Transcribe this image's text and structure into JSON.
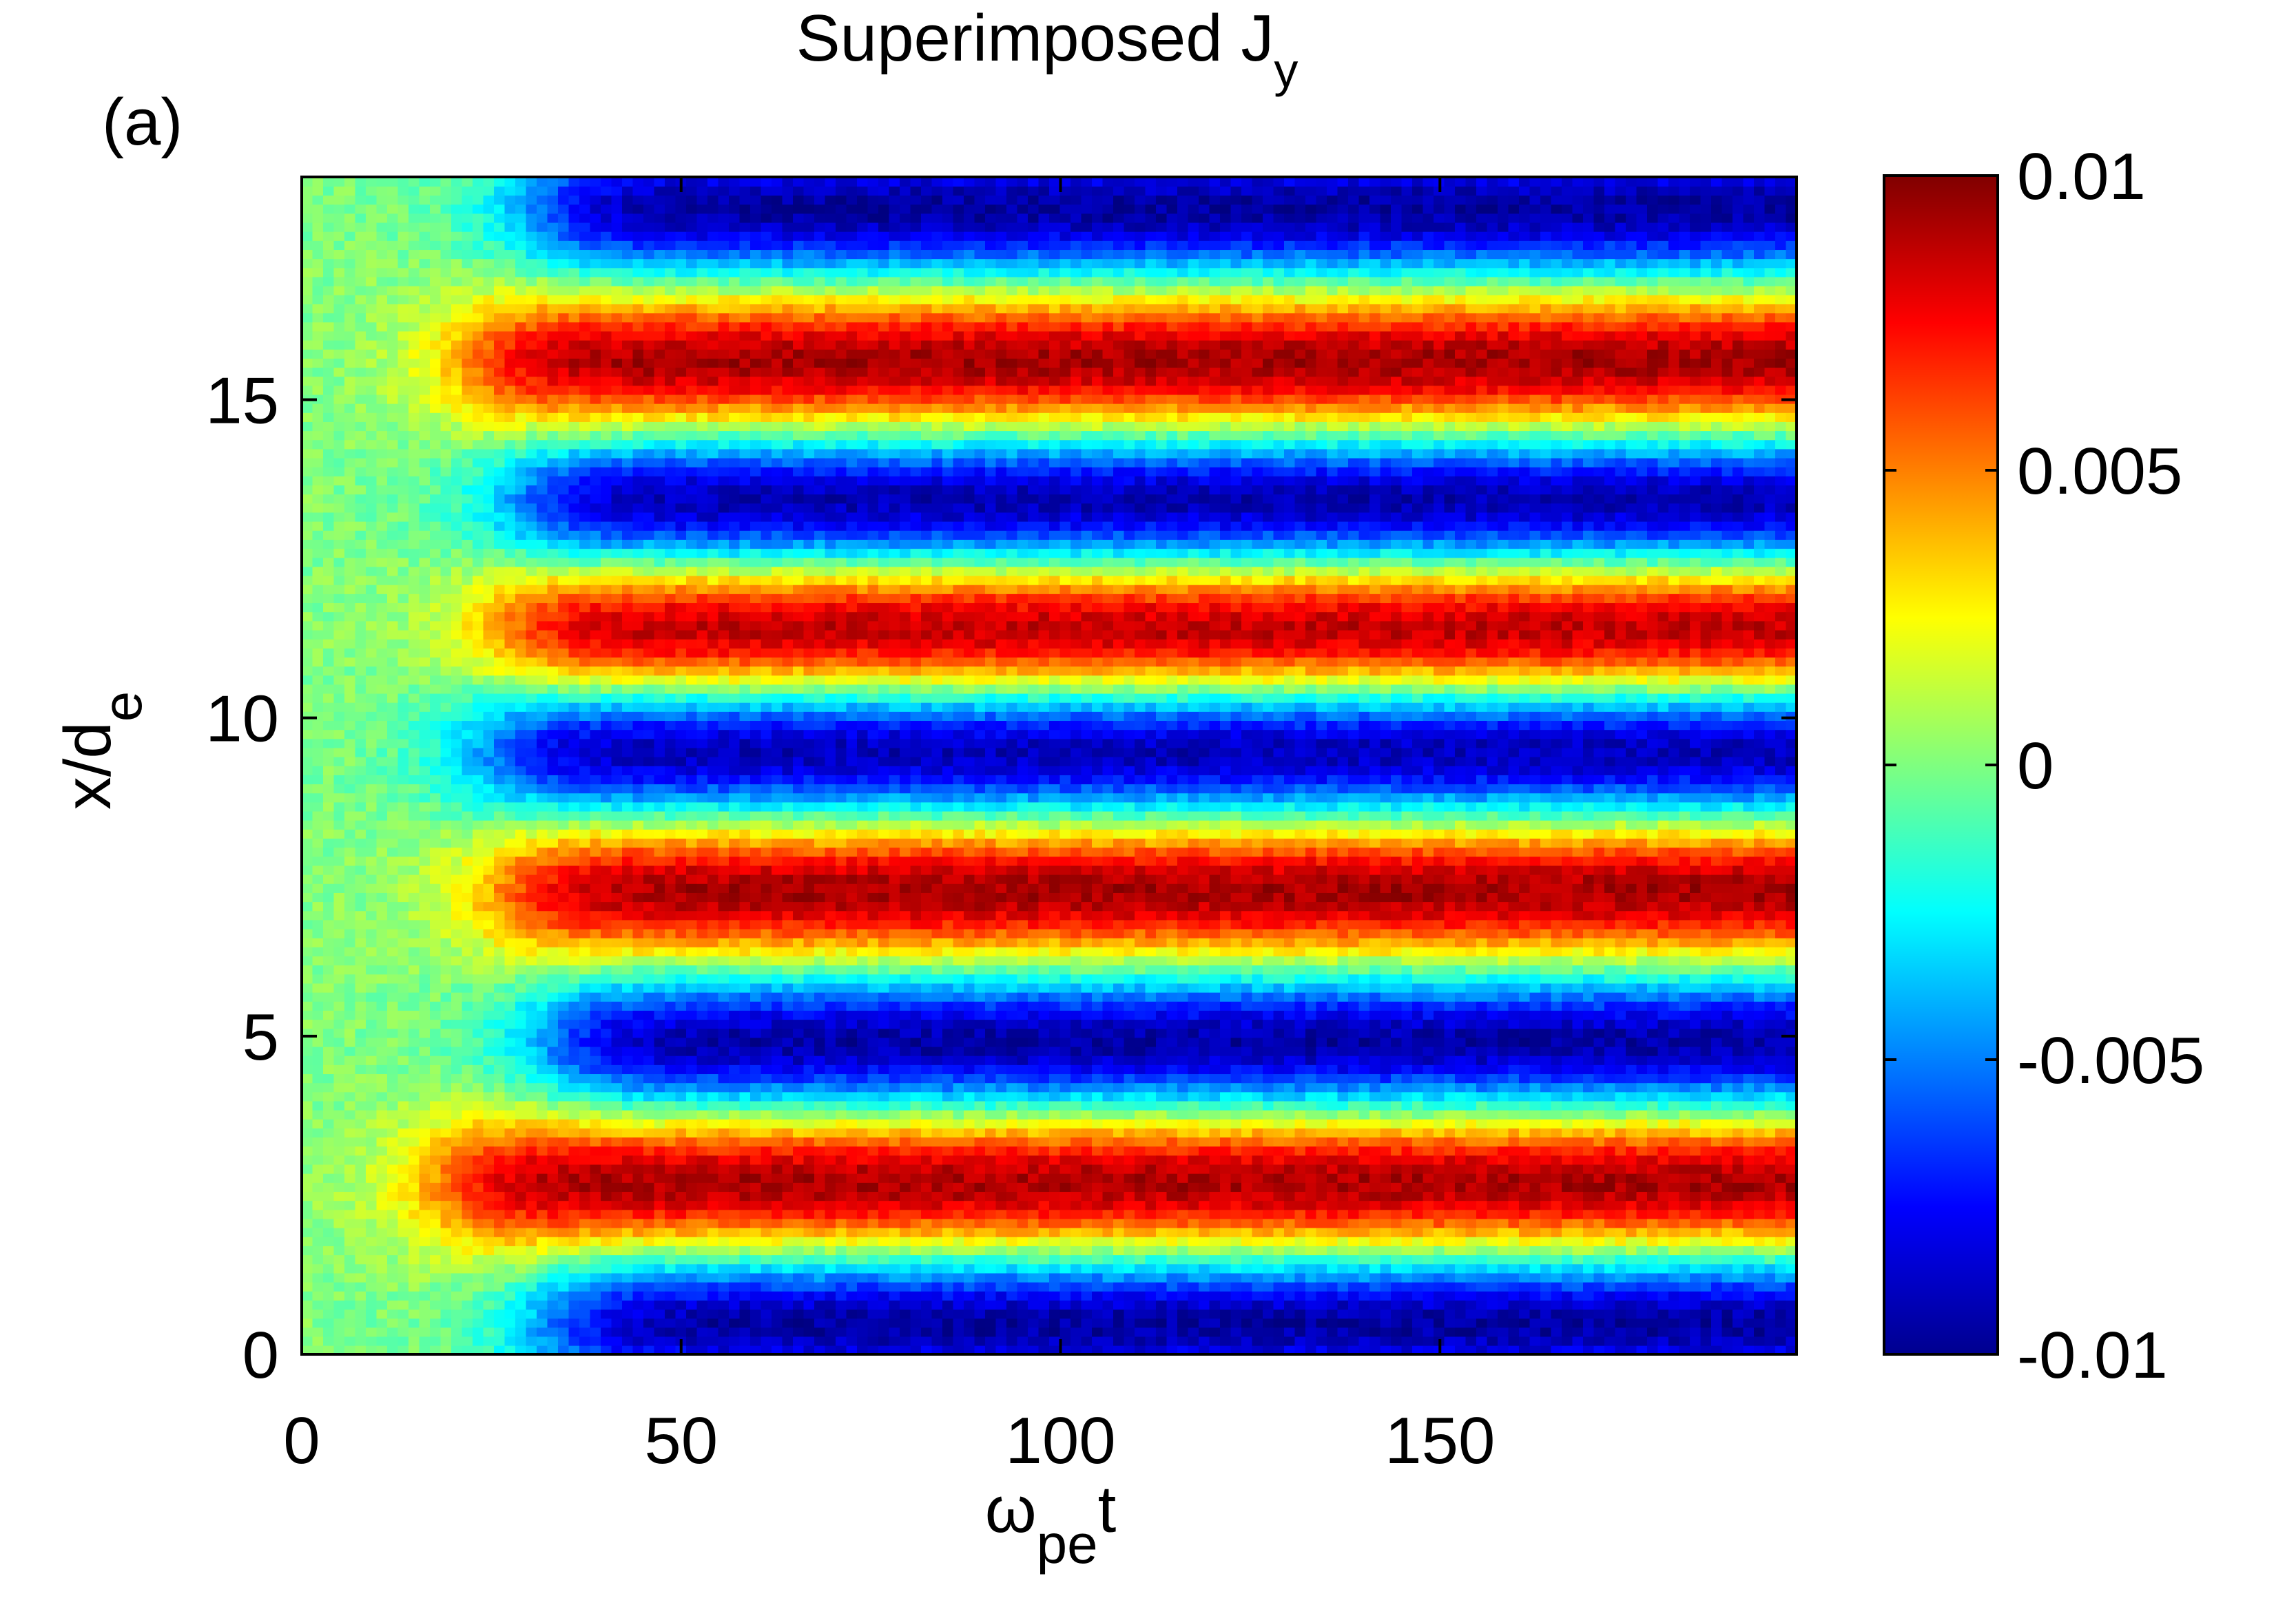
{
  "panel_label": "(a)",
  "colormap": "jet",
  "chart_data": {
    "type": "heatmap",
    "title": {
      "text": "Superimposed J",
      "subscript": "y"
    },
    "xlabel": {
      "text": "ω",
      "subscript": "pe",
      "suffix": "t"
    },
    "ylabel": {
      "text": "x/d",
      "subscript": "e"
    },
    "xlim": [
      0,
      197
    ],
    "ylim": [
      0,
      18.5
    ],
    "x_ticks": [
      0,
      50,
      100,
      150
    ],
    "y_ticks": [
      0,
      5,
      10,
      15
    ],
    "x_tick_labels": [
      "0",
      "50",
      "100",
      "150"
    ],
    "y_tick_labels": [
      "0",
      "5",
      "10",
      "15"
    ],
    "colorbar": {
      "range": [
        -0.01,
        0.01
      ],
      "ticks": [
        0.01,
        0.005,
        0,
        -0.005,
        -0.01
      ],
      "tick_labels": [
        "0.01",
        "0.005",
        "0",
        "-0.005",
        "-0.01"
      ]
    },
    "grid": false,
    "bands": [
      {
        "center": 0.5,
        "sign": -1,
        "onset": 32
      },
      {
        "center": 2.7,
        "sign": 1,
        "onset": 18
      },
      {
        "center": 4.9,
        "sign": -1,
        "onset": 32
      },
      {
        "center": 7.3,
        "sign": 1,
        "onset": 26
      },
      {
        "center": 9.5,
        "sign": -1,
        "onset": 24
      },
      {
        "center": 11.4,
        "sign": 1,
        "onset": 26
      },
      {
        "center": 13.4,
        "sign": -1,
        "onset": 28
      },
      {
        "center": 15.6,
        "sign": 1,
        "onset": 22
      },
      {
        "center": 18.0,
        "sign": -1,
        "onset": 30
      }
    ],
    "band_width": 1.1,
    "amplitude": 0.0095
  }
}
